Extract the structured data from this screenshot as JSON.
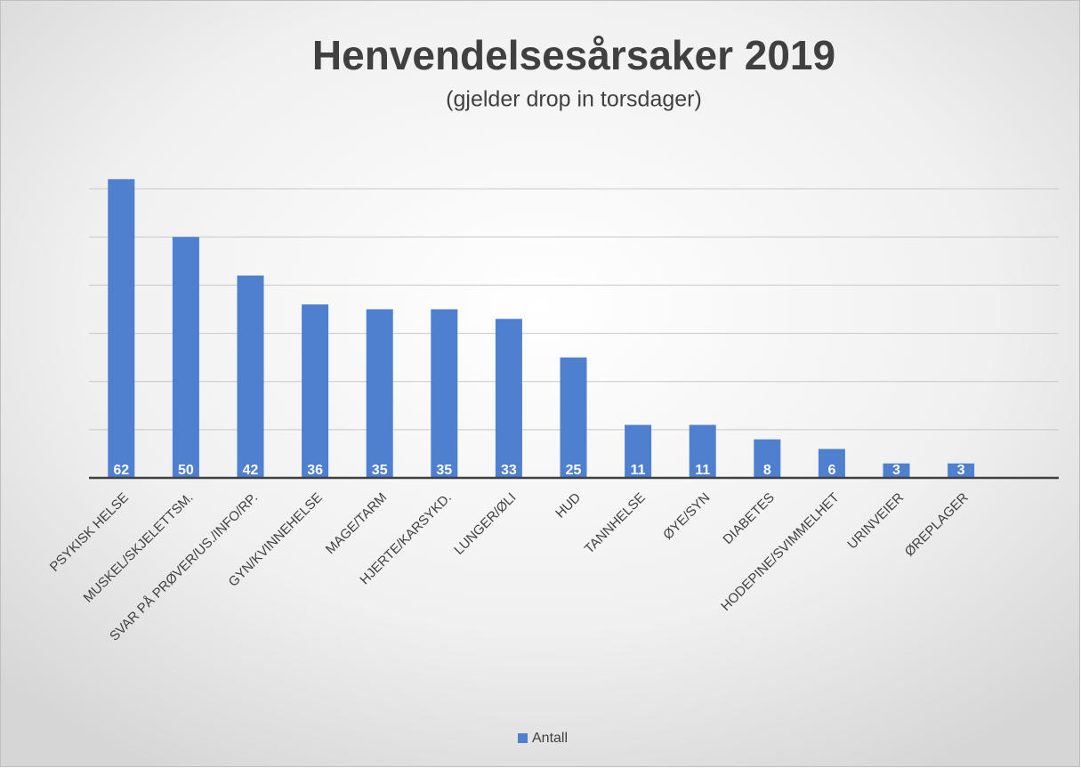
{
  "chart_data": {
    "type": "bar",
    "title": "Henvendelsesårsaker 2019",
    "subtitle": "(gjelder drop in torsdager)",
    "categories": [
      "PSYKISK HELSE",
      "MUSKEL/SKJELETTSM.",
      "SVAR PÅ PRØVER/US./INFO/RP.",
      "GYN/KVINNEHELSE",
      "MAGE/TARM",
      "HJERTE/KARSYKD.",
      "LUNGER/ØLI",
      "HUD",
      "TANNHELSE",
      "ØYE/SYN",
      "DIABETES",
      "HODEPINE/SVIMMELHET",
      "URINVEIER",
      "ØREPLAGER"
    ],
    "series": [
      {
        "name": "Antall",
        "color": "#4f7fcf",
        "values": [
          62,
          50,
          42,
          36,
          35,
          35,
          33,
          25,
          11,
          11,
          8,
          6,
          3,
          3
        ]
      }
    ],
    "ylim": [
      0,
      70
    ],
    "yticks": [
      0,
      10,
      20,
      30,
      40,
      50,
      60
    ],
    "grid": true,
    "legend": "bottom"
  }
}
